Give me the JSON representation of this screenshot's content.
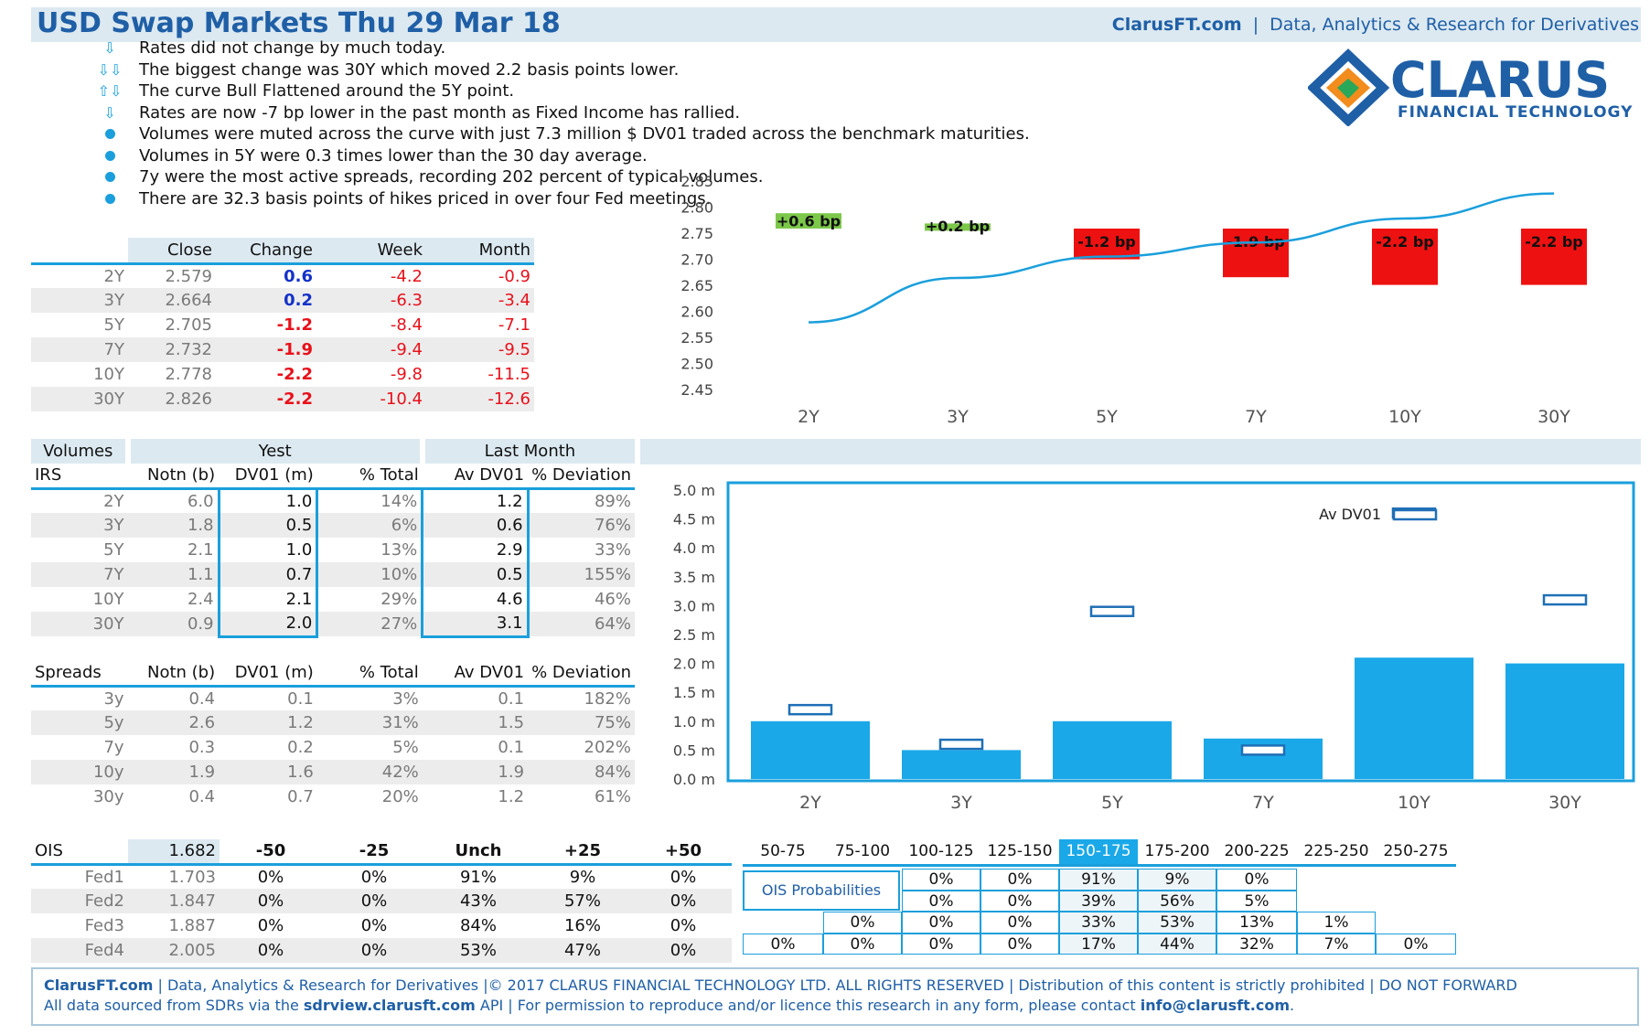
{
  "header": {
    "title": "USD Swap Markets Thu 29 Mar 18",
    "site": "ClarusFT.com",
    "sep": "|",
    "tagline": "Data, Analytics & Research for Derivatives"
  },
  "logo": {
    "name": "CLARUS",
    "sub": "FINANCIAL TECHNOLOGY",
    "colors": [
      "#1f5fa6",
      "#f28c1c",
      "#2aa85a"
    ]
  },
  "bullets": [
    {
      "icon": "arrow-down",
      "text": "Rates did not change by much today."
    },
    {
      "icon": "double-arrow-down",
      "text": "The biggest change was 30Y which moved 2.2 basis points lower."
    },
    {
      "icon": "arrow-up-down",
      "text": "The curve Bull Flattened around the 5Y point."
    },
    {
      "icon": "arrow-down",
      "text": "Rates are now -7 bp lower in the past month as Fixed Income has rallied."
    },
    {
      "icon": "dot",
      "text": "Volumes were muted across the curve with just 7.3 million $ DV01 traded across the benchmark maturities."
    },
    {
      "icon": "dot",
      "text": "Volumes in 5Y were 0.3 times lower than the 30 day average."
    },
    {
      "icon": "dot",
      "text": "7y were the most active spreads, recording 202 percent of typical volumes."
    },
    {
      "icon": "dot",
      "text": "There are 32.3 basis points of hikes priced in over four Fed meetings."
    }
  ],
  "rates": {
    "headers": [
      "Close",
      "Change",
      "Week",
      "Month"
    ],
    "rows": [
      {
        "tenor": "2Y",
        "close": "2.579",
        "change": "0.6",
        "week": "-4.2",
        "month": "-0.9",
        "dir": "up"
      },
      {
        "tenor": "3Y",
        "close": "2.664",
        "change": "0.2",
        "week": "-6.3",
        "month": "-3.4",
        "dir": "up"
      },
      {
        "tenor": "5Y",
        "close": "2.705",
        "change": "-1.2",
        "week": "-8.4",
        "month": "-7.1",
        "dir": "down"
      },
      {
        "tenor": "7Y",
        "close": "2.732",
        "change": "-1.9",
        "week": "-9.4",
        "month": "-9.5",
        "dir": "down"
      },
      {
        "tenor": "10Y",
        "close": "2.778",
        "change": "-2.2",
        "week": "-9.8",
        "month": "-11.5",
        "dir": "down"
      },
      {
        "tenor": "30Y",
        "close": "2.826",
        "change": "-2.2",
        "week": "-10.4",
        "month": "-12.6",
        "dir": "down"
      }
    ]
  },
  "volumes": {
    "group_headers": [
      "Volumes",
      "Yest",
      "Last Month"
    ],
    "irs_label": "IRS",
    "col_headers": [
      "Notn (b)",
      "DV01 (m)",
      "% Total",
      "Av DV01",
      "% Deviation"
    ],
    "irs_rows": [
      {
        "tenor": "2Y",
        "notn": "6.0",
        "dv01": "1.0",
        "pct": "14%",
        "av": "1.2",
        "dev": "89%"
      },
      {
        "tenor": "3Y",
        "notn": "1.8",
        "dv01": "0.5",
        "pct": "6%",
        "av": "0.6",
        "dev": "76%"
      },
      {
        "tenor": "5Y",
        "notn": "2.1",
        "dv01": "1.0",
        "pct": "13%",
        "av": "2.9",
        "dev": "33%"
      },
      {
        "tenor": "7Y",
        "notn": "1.1",
        "dv01": "0.7",
        "pct": "10%",
        "av": "0.5",
        "dev": "155%"
      },
      {
        "tenor": "10Y",
        "notn": "2.4",
        "dv01": "2.1",
        "pct": "29%",
        "av": "4.6",
        "dev": "46%"
      },
      {
        "tenor": "30Y",
        "notn": "0.9",
        "dv01": "2.0",
        "pct": "27%",
        "av": "3.1",
        "dev": "64%"
      }
    ],
    "spreads_label": "Spreads",
    "spread_rows": [
      {
        "tenor": "3y",
        "notn": "0.4",
        "dv01": "0.1",
        "pct": "3%",
        "av": "0.1",
        "dev": "182%"
      },
      {
        "tenor": "5y",
        "notn": "2.6",
        "dv01": "1.2",
        "pct": "31%",
        "av": "1.5",
        "dev": "75%"
      },
      {
        "tenor": "7y",
        "notn": "0.3",
        "dv01": "0.2",
        "pct": "5%",
        "av": "0.1",
        "dev": "202%"
      },
      {
        "tenor": "10y",
        "notn": "1.9",
        "dv01": "1.6",
        "pct": "42%",
        "av": "1.9",
        "dev": "84%"
      },
      {
        "tenor": "30y",
        "notn": "0.4",
        "dv01": "0.7",
        "pct": "20%",
        "av": "1.2",
        "dev": "61%"
      }
    ]
  },
  "ois": {
    "label": "OIS",
    "rate": "1.682",
    "headers": [
      "-50",
      "-25",
      "Unch",
      "+25",
      "+50"
    ],
    "rows": [
      {
        "name": "Fed1",
        "rate": "1.703",
        "vals": [
          "0%",
          "0%",
          "91%",
          "9%",
          "0%"
        ]
      },
      {
        "name": "Fed2",
        "rate": "1.847",
        "vals": [
          "0%",
          "0%",
          "43%",
          "57%",
          "0%"
        ]
      },
      {
        "name": "Fed3",
        "rate": "1.887",
        "vals": [
          "0%",
          "0%",
          "84%",
          "16%",
          "0%"
        ]
      },
      {
        "name": "Fed4",
        "rate": "2.005",
        "vals": [
          "0%",
          "0%",
          "53%",
          "47%",
          "0%"
        ]
      }
    ],
    "prob_title": "OIS Probabilities",
    "buckets": [
      "50-75",
      "75-100",
      "100-125",
      "125-150",
      "150-175",
      "175-200",
      "200-225",
      "225-250",
      "250-275"
    ],
    "current_bucket": "150-175",
    "prob_rows": [
      [
        "",
        "",
        "0%",
        "0%",
        "91%",
        "9%",
        "0%",
        "",
        ""
      ],
      [
        "",
        "",
        "0%",
        "0%",
        "39%",
        "56%",
        "5%",
        "",
        ""
      ],
      [
        "",
        "0%",
        "0%",
        "0%",
        "33%",
        "53%",
        "13%",
        "1%",
        ""
      ],
      [
        "0%",
        "0%",
        "0%",
        "0%",
        "17%",
        "44%",
        "32%",
        "7%",
        "0%"
      ]
    ]
  },
  "chart_data": [
    {
      "type": "bar",
      "categories": [
        "2Y",
        "3Y",
        "5Y",
        "7Y",
        "10Y",
        "30Y"
      ],
      "series": [
        {
          "type": "line",
          "values": [
            2.579,
            2.664,
            2.705,
            2.732,
            2.778,
            2.826
          ]
        },
        {
          "type": "bar",
          "values": [
            0.6,
            0.2,
            -1.2,
            -1.9,
            -2.2,
            -2.2
          ]
        }
      ],
      "data_labels": [
        "+0.6 bp",
        "+0.2 bp",
        "-1.2 bp",
        "-1.9 bp",
        "-2.2 bp",
        "-2.2 bp"
      ],
      "yticks": [
        "2.85",
        "2.80",
        "2.75",
        "2.70",
        "2.65",
        "2.60",
        "2.55",
        "2.50",
        "2.45"
      ],
      "ylim": [
        2.45,
        2.85
      ],
      "colors": {
        "up": "#7cc84a",
        "down": "#ee1111",
        "line": "#1a9fdc"
      }
    },
    {
      "type": "bar",
      "categories": [
        "2Y",
        "3Y",
        "5Y",
        "7Y",
        "10Y",
        "30Y"
      ],
      "series": [
        {
          "name": "",
          "values": [
            1.0,
            0.5,
            1.0,
            0.7,
            2.1,
            2.0
          ]
        },
        {
          "name": "Av DV01",
          "values": [
            1.2,
            0.6,
            2.9,
            0.5,
            4.6,
            3.1
          ]
        }
      ],
      "legend_label": "Av DV01",
      "yticks": [
        "5.0 m",
        "4.5 m",
        "4.0 m",
        "3.5 m",
        "3.0 m",
        "2.5 m",
        "2.0 m",
        "1.5 m",
        "1.0 m",
        "0.5 m",
        "0.0 m"
      ],
      "ylim": [
        0,
        5
      ],
      "legend": "top-right",
      "colors": {
        "bar": "#1aa8e8",
        "marker": "#1f6fb6"
      }
    }
  ],
  "footer": {
    "line1_site": "ClarusFT.com",
    "line1_rest": " | Data, Analytics & Research for Derivatives  |© 2017 CLARUS FINANCIAL TECHNOLOGY LTD. ALL RIGHTS RESERVED | Distribution of this content  is strictly prohibited | DO NOT FORWARD",
    "line2_a": "All data sourced from SDRs via the ",
    "line2_b": "sdrview.clarusft.com",
    "line2_c": " API | For permission to reproduce and/or licence this research in any form, please contact ",
    "line2_d": "info@clarusft.com",
    "line2_e": "."
  }
}
